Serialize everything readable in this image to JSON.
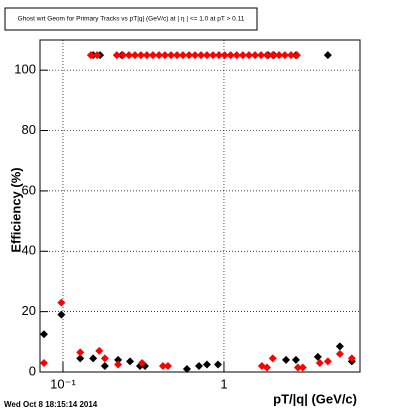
{
  "chart_data": {
    "type": "scatter",
    "title": "Ghost wrt Geom for Primary Tracks vs pT|q| (GeV/c) at |  η | <= 1.0 at pT > 0.11",
    "x_label": "pT/|q| (GeV/c)",
    "y_label": "Efficiency (%)",
    "timestamp": "Wed Oct  8 18:15:14 2014",
    "log_x": true,
    "grid": true,
    "xlim": [
      0.072,
      7
    ],
    "ylim": [
      0,
      110
    ],
    "xticks": [
      {
        "value": 0.1,
        "label": "10⁻¹"
      },
      1
    ],
    "yticks": [
      0,
      20,
      40,
      60,
      80,
      100
    ],
    "series": [
      {
        "color": "#000000",
        "x": [
          0.154,
          0.17,
          0.232,
          1.88,
          2.04,
          2.8,
          4.42,
          0.0762,
          0.0977,
          0.128,
          0.154,
          0.182,
          0.22,
          0.261,
          0.301,
          0.323,
          0.589,
          0.7,
          0.784,
          0.918,
          2.43,
          2.8,
          3.83,
          5.25,
          6.23
        ],
        "values": [
          105,
          105,
          105,
          105,
          105,
          105,
          105,
          12.5,
          19,
          4.5,
          4.5,
          2,
          4,
          3.5,
          2,
          2,
          1,
          2,
          2.5,
          2.5,
          4,
          4,
          5,
          8.5,
          3.5
        ]
      },
      {
        "color": "#ff0000",
        "x": [
          0.149,
          0.163,
          0.216,
          0.236,
          0.257,
          0.28,
          0.305,
          0.332,
          0.362,
          0.395,
          0.43,
          0.469,
          0.511,
          0.556,
          0.607,
          0.661,
          0.72,
          0.784,
          0.855,
          0.931,
          1.01,
          1.1,
          1.2,
          1.31,
          1.43,
          1.56,
          1.7,
          1.85,
          2.01,
          2.2,
          2.39,
          2.61,
          2.84,
          0.0762,
          0.0977,
          0.128,
          0.168,
          0.182,
          0.22,
          0.31,
          0.418,
          0.449,
          1.72,
          1.85,
          2.01,
          2.88,
          3.09,
          3.94,
          4.42,
          5.25,
          6.23
        ],
        "values": [
          105,
          105,
          105,
          105,
          105,
          105,
          105,
          105,
          105,
          105,
          105,
          105,
          105,
          105,
          105,
          105,
          105,
          105,
          105,
          105,
          105,
          105,
          105,
          105,
          105,
          105,
          105,
          105,
          105,
          105,
          105,
          105,
          105,
          3,
          23,
          6.5,
          7,
          4.5,
          2.5,
          3,
          2,
          2,
          2,
          1.5,
          4.5,
          1.5,
          1.5,
          3,
          3.5,
          6,
          4.5
        ]
      }
    ]
  }
}
